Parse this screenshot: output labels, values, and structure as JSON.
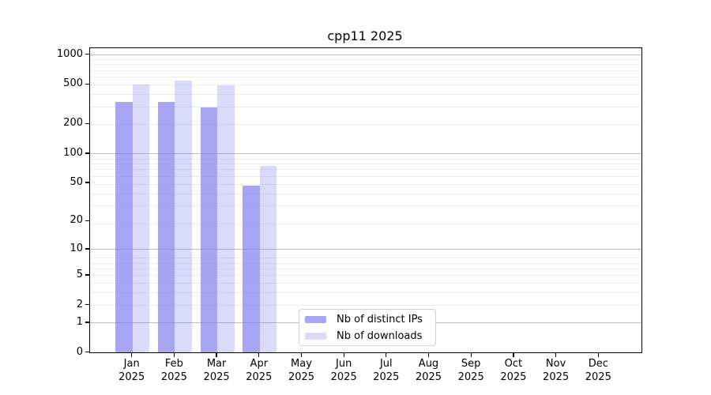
{
  "chart_data": {
    "type": "bar",
    "title": "cpp11 2025",
    "categories": [
      "Jan 2025",
      "Feb 2025",
      "Mar 2025",
      "Apr 2025",
      "May 2025",
      "Jun 2025",
      "Jul 2025",
      "Aug 2025",
      "Sep 2025",
      "Oct 2025",
      "Nov 2025",
      "Dec 2025"
    ],
    "series": [
      {
        "name": "Nb of distinct IPs",
        "color": "#7a7af0",
        "alpha": 0.67,
        "values": [
          330,
          330,
          295,
          47,
          null,
          null,
          null,
          null,
          null,
          null,
          null,
          null
        ]
      },
      {
        "name": "Nb of downloads",
        "color": "#7a7af0",
        "alpha": 0.28,
        "values": [
          495,
          545,
          485,
          74,
          null,
          null,
          null,
          null,
          null,
          null,
          null,
          null
        ]
      }
    ],
    "xlabel": "",
    "ylabel": "",
    "yscale": "log1p",
    "ylim": [
      0,
      1000
    ],
    "y_ticks": [
      0,
      1,
      2,
      5,
      10,
      20,
      50,
      100,
      200,
      500,
      1000
    ],
    "grid": "horizontal log major+minor",
    "legend_position": "inside bottom-center-left"
  },
  "colors": {
    "bar_base": "#7a7af0",
    "major_grid": "#bdbdbd",
    "minor_grid": "#ebebeb",
    "axis": "#000000",
    "legend_border": "#d2d2d2",
    "background": "#ffffff",
    "text": "#000000"
  }
}
